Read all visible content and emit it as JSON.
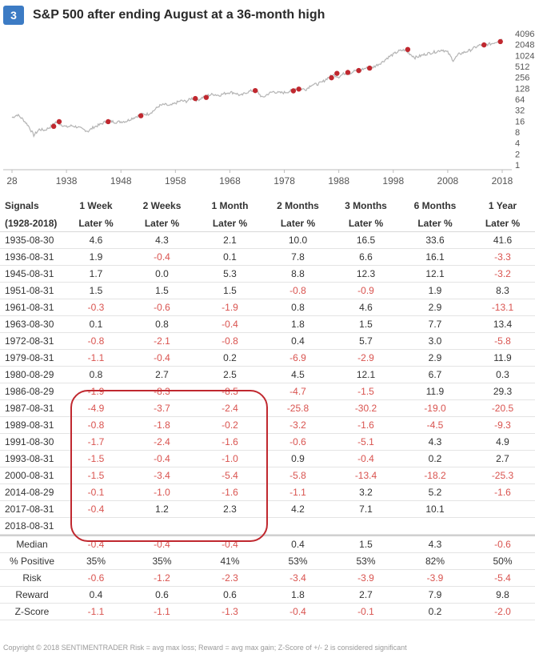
{
  "header": {
    "badge": "3",
    "title": "S&P 500 after ending August at a 36-month high"
  },
  "chart_data": {
    "type": "line",
    "title": "S&P 500 after ending August at a 36-month high",
    "x_ticks": [
      "28",
      "1938",
      "1948",
      "1958",
      "1968",
      "1978",
      "1988",
      "1998",
      "2008",
      "2018"
    ],
    "y_ticks": [
      "4096",
      "2048",
      "1024",
      "512",
      "256",
      "128",
      "64",
      "32",
      "16",
      "8",
      "4",
      "2",
      "1"
    ],
    "y_scale": "log2",
    "ylim": [
      1,
      4096
    ],
    "xlim": [
      1928,
      2018
    ],
    "line_color": "#b4b4b4",
    "marker_color": "#c0282f",
    "series": [
      {
        "values": [
          [
            1928,
            20
          ],
          [
            1929,
            24
          ],
          [
            1930,
            18
          ],
          [
            1931,
            12
          ],
          [
            1932,
            6.5
          ],
          [
            1933,
            9.5
          ],
          [
            1934,
            9
          ],
          [
            1935,
            11
          ],
          [
            1936,
            15
          ],
          [
            1937,
            13
          ],
          [
            1938,
            11
          ],
          [
            1939,
            12
          ],
          [
            1940,
            11
          ],
          [
            1941,
            9.5
          ],
          [
            1942,
            8.5
          ],
          [
            1943,
            11
          ],
          [
            1944,
            12.5
          ],
          [
            1945,
            15
          ],
          [
            1946,
            16
          ],
          [
            1947,
            15
          ],
          [
            1948,
            15.5
          ],
          [
            1949,
            16
          ],
          [
            1950,
            19
          ],
          [
            1951,
            22
          ],
          [
            1952,
            25
          ],
          [
            1953,
            25
          ],
          [
            1954,
            31
          ],
          [
            1955,
            42
          ],
          [
            1956,
            46
          ],
          [
            1957,
            42
          ],
          [
            1958,
            50
          ],
          [
            1959,
            58
          ],
          [
            1960,
            56
          ],
          [
            1961,
            68
          ],
          [
            1962,
            60
          ],
          [
            1963,
            72
          ],
          [
            1964,
            82
          ],
          [
            1965,
            88
          ],
          [
            1966,
            82
          ],
          [
            1967,
            92
          ],
          [
            1968,
            100
          ],
          [
            1969,
            95
          ],
          [
            1970,
            80
          ],
          [
            1971,
            98
          ],
          [
            1972,
            110
          ],
          [
            1973,
            105
          ],
          [
            1974,
            70
          ],
          [
            1975,
            90
          ],
          [
            1976,
            104
          ],
          [
            1977,
            96
          ],
          [
            1978,
            98
          ],
          [
            1979,
            106
          ],
          [
            1980,
            125
          ],
          [
            1981,
            124
          ],
          [
            1982,
            120
          ],
          [
            1983,
            162
          ],
          [
            1984,
            165
          ],
          [
            1985,
            190
          ],
          [
            1986,
            250
          ],
          [
            1987,
            300
          ],
          [
            1988,
            265
          ],
          [
            1989,
            330
          ],
          [
            1990,
            330
          ],
          [
            1991,
            395
          ],
          [
            1992,
            415
          ],
          [
            1993,
            460
          ],
          [
            1994,
            460
          ],
          [
            1995,
            560
          ],
          [
            1996,
            680
          ],
          [
            1997,
            900
          ],
          [
            1998,
            1100
          ],
          [
            1999,
            1350
          ],
          [
            2000,
            1450
          ],
          [
            2001,
            1150
          ],
          [
            2002,
            900
          ],
          [
            2003,
            1000
          ],
          [
            2004,
            1130
          ],
          [
            2005,
            1220
          ],
          [
            2006,
            1320
          ],
          [
            2007,
            1480
          ],
          [
            2008,
            1250
          ],
          [
            2009,
            750
          ],
          [
            2010,
            1100
          ],
          [
            2011,
            1250
          ],
          [
            2012,
            1400
          ],
          [
            2013,
            1700
          ],
          [
            2014,
            2000
          ],
          [
            2015,
            2050
          ],
          [
            2016,
            2150
          ],
          [
            2017,
            2470
          ],
          [
            2018,
            2900
          ]
        ]
      }
    ],
    "markers": [
      [
        1935.66,
        11.5
      ],
      [
        1936.66,
        15.5
      ],
      [
        1945.66,
        15.5
      ],
      [
        1951.66,
        22.5
      ],
      [
        1961.66,
        67
      ],
      [
        1963.66,
        72
      ],
      [
        1972.66,
        111
      ],
      [
        1979.66,
        109
      ],
      [
        1980.66,
        122
      ],
      [
        1986.66,
        250
      ],
      [
        1987.66,
        330
      ],
      [
        1989.66,
        350
      ],
      [
        1991.66,
        395
      ],
      [
        1993.66,
        460
      ],
      [
        2000.66,
        1500
      ],
      [
        2014.66,
        2000
      ],
      [
        2017.66,
        2470
      ]
    ]
  },
  "table": {
    "headers": [
      [
        "Signals",
        "(1928-2018)"
      ],
      [
        "1 Week",
        "Later %"
      ],
      [
        "2 Weeks",
        "Later %"
      ],
      [
        "1 Month",
        "Later %"
      ],
      [
        "2 Months",
        "Later %"
      ],
      [
        "3 Months",
        "Later %"
      ],
      [
        "6 Months",
        "Later %"
      ],
      [
        "1 Year",
        "Later %"
      ]
    ],
    "rows": [
      [
        "1935-08-30",
        "4.6",
        "4.3",
        "2.1",
        "10.0",
        "16.5",
        "33.6",
        "41.6"
      ],
      [
        "1936-08-31",
        "1.9",
        "-0.4",
        "0.1",
        "7.8",
        "6.6",
        "16.1",
        "-3.3"
      ],
      [
        "1945-08-31",
        "1.7",
        "0.0",
        "5.3",
        "8.8",
        "12.3",
        "12.1",
        "-3.2"
      ],
      [
        "1951-08-31",
        "1.5",
        "1.5",
        "1.5",
        "-0.8",
        "-0.9",
        "1.9",
        "8.3"
      ],
      [
        "1961-08-31",
        "-0.3",
        "-0.6",
        "-1.9",
        "0.8",
        "4.6",
        "2.9",
        "-13.1"
      ],
      [
        "1963-08-30",
        "0.1",
        "0.8",
        "-0.4",
        "1.8",
        "1.5",
        "7.7",
        "13.4"
      ],
      [
        "1972-08-31",
        "-0.8",
        "-2.1",
        "-0.8",
        "0.4",
        "5.7",
        "3.0",
        "-5.8"
      ],
      [
        "1979-08-31",
        "-1.1",
        "-0.4",
        "0.2",
        "-6.9",
        "-2.9",
        "2.9",
        "11.9"
      ],
      [
        "1980-08-29",
        "0.8",
        "2.7",
        "2.5",
        "4.5",
        "12.1",
        "6.7",
        "0.3"
      ],
      [
        "1986-08-29",
        "-1.9",
        "-8.3",
        "-8.5",
        "-4.7",
        "-1.5",
        "11.9",
        "29.3"
      ],
      [
        "1987-08-31",
        "-4.9",
        "-3.7",
        "-2.4",
        "-25.8",
        "-30.2",
        "-19.0",
        "-20.5"
      ],
      [
        "1989-08-31",
        "-0.8",
        "-1.8",
        "-0.2",
        "-3.2",
        "-1.6",
        "-4.5",
        "-9.3"
      ],
      [
        "1991-08-30",
        "-1.7",
        "-2.4",
        "-1.6",
        "-0.6",
        "-5.1",
        "4.3",
        "4.9"
      ],
      [
        "1993-08-31",
        "-1.5",
        "-0.4",
        "-1.0",
        "0.9",
        "-0.4",
        "0.2",
        "2.7"
      ],
      [
        "2000-08-31",
        "-1.5",
        "-3.4",
        "-5.4",
        "-5.8",
        "-13.4",
        "-18.2",
        "-25.3"
      ],
      [
        "2014-08-29",
        "-0.1",
        "-1.0",
        "-1.6",
        "-1.1",
        "3.2",
        "5.2",
        "-1.6"
      ],
      [
        "2017-08-31",
        "-0.4",
        "1.2",
        "2.3",
        "4.2",
        "7.1",
        "10.1",
        ""
      ],
      [
        "2018-08-31",
        "",
        "",
        "",
        "",
        "",
        "",
        ""
      ]
    ],
    "stats": [
      [
        "Median",
        "-0.4",
        "-0.4",
        "-0.4",
        "0.4",
        "1.5",
        "4.3",
        "-0.6"
      ],
      [
        "% Positive",
        "35%",
        "35%",
        "41%",
        "53%",
        "53%",
        "82%",
        "50%"
      ],
      [
        "Risk",
        "-0.6",
        "-1.2",
        "-2.3",
        "-3.4",
        "-3.9",
        "-3.9",
        "-5.4"
      ],
      [
        "Reward",
        "0.4",
        "0.6",
        "0.6",
        "1.8",
        "2.7",
        "7.9",
        "9.8"
      ],
      [
        "Z-Score",
        "-1.1",
        "-1.1",
        "-1.3",
        "-0.4",
        "-0.1",
        "0.2",
        "-2.0"
      ]
    ]
  },
  "footer": "Copyright © 2018  SENTIMENTRADER  Risk = avg max loss; Reward = avg max gain; Z-Score of +/- 2 is considered significant",
  "colors": {
    "negative": "#d9534f",
    "badge": "#3c7bc4",
    "highlight": "#c0282f"
  }
}
